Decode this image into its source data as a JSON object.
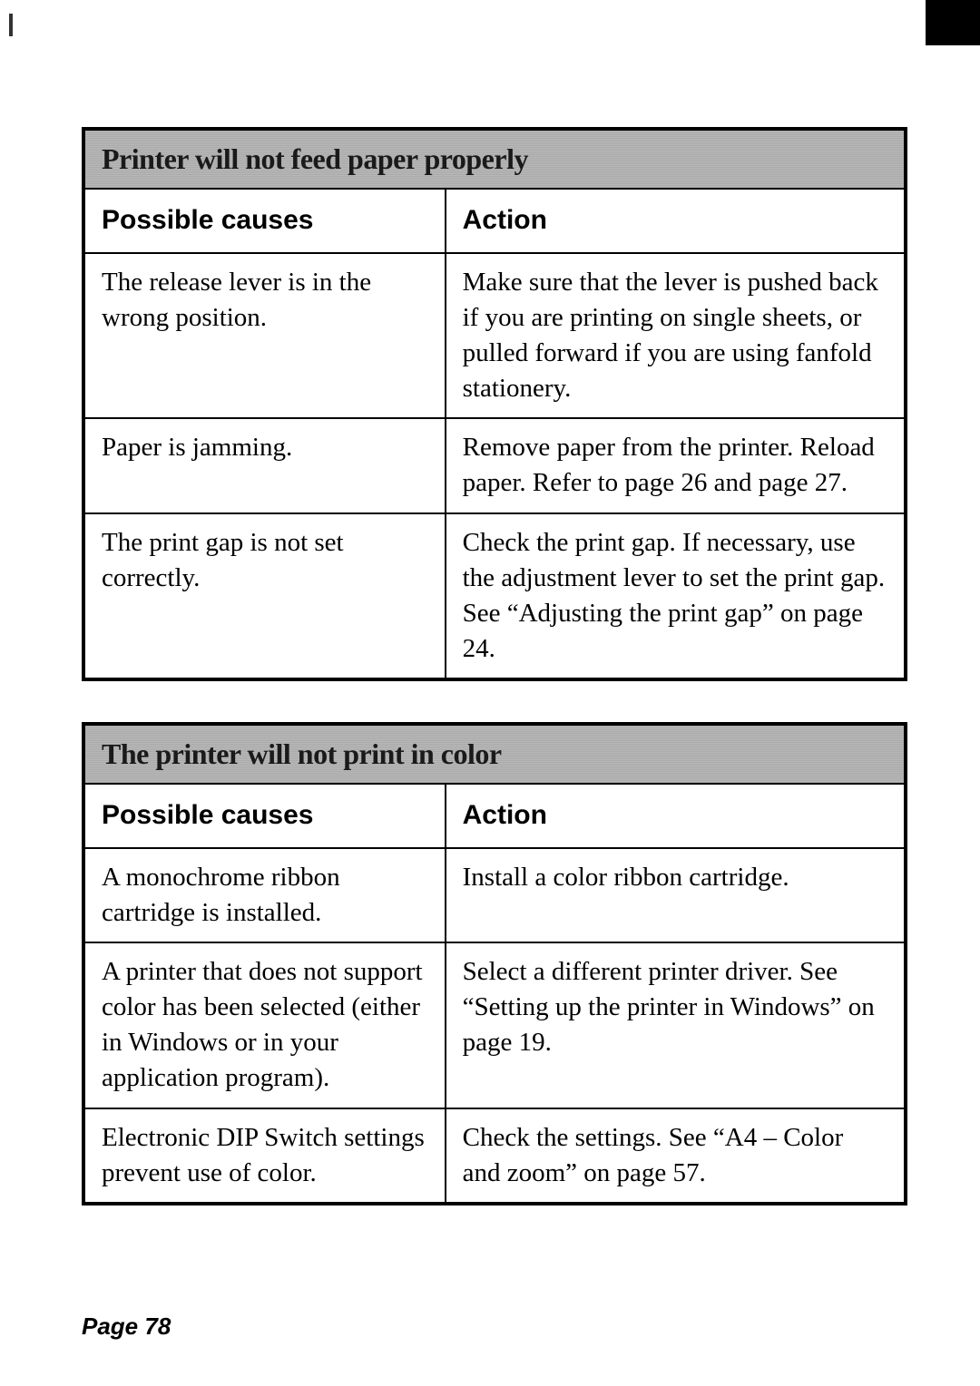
{
  "tables": [
    {
      "title": "Printer will not feed paper properly",
      "col_cause_header": "Possible causes",
      "col_action_header": "Action",
      "rows": [
        {
          "cause": "The release lever is in the wrong position.",
          "action": "Make sure that the lever is pushed back if you are printing on single sheets, or pulled forward if you are using fanfold stationery."
        },
        {
          "cause": "Paper is jamming.",
          "action": "Remove paper from the printer. Reload paper. Refer to page 26 and page 27."
        },
        {
          "cause": "The print gap is not set correctly.",
          "action": "Check the print gap. If necessary, use the adjustment lever to set the print gap. See “Adjusting the print gap” on page 24."
        }
      ]
    },
    {
      "title": "The printer will not print in color",
      "col_cause_header": "Possible causes",
      "col_action_header": "Action",
      "rows": [
        {
          "cause": "A monochrome ribbon cartridge is installed.",
          "action": "Install a color ribbon cartridge."
        },
        {
          "cause": "A printer that does not support color has been selected (either in Windows or in your application program).",
          "action": "Select a different printer driver. See “Setting up the printer in Windows” on page 19."
        },
        {
          "cause": "Electronic DIP Switch settings prevent use of color.",
          "action": "Check the settings. See “A4 – Color and zoom” on page 57."
        }
      ]
    }
  ],
  "page_number": "Page 78"
}
